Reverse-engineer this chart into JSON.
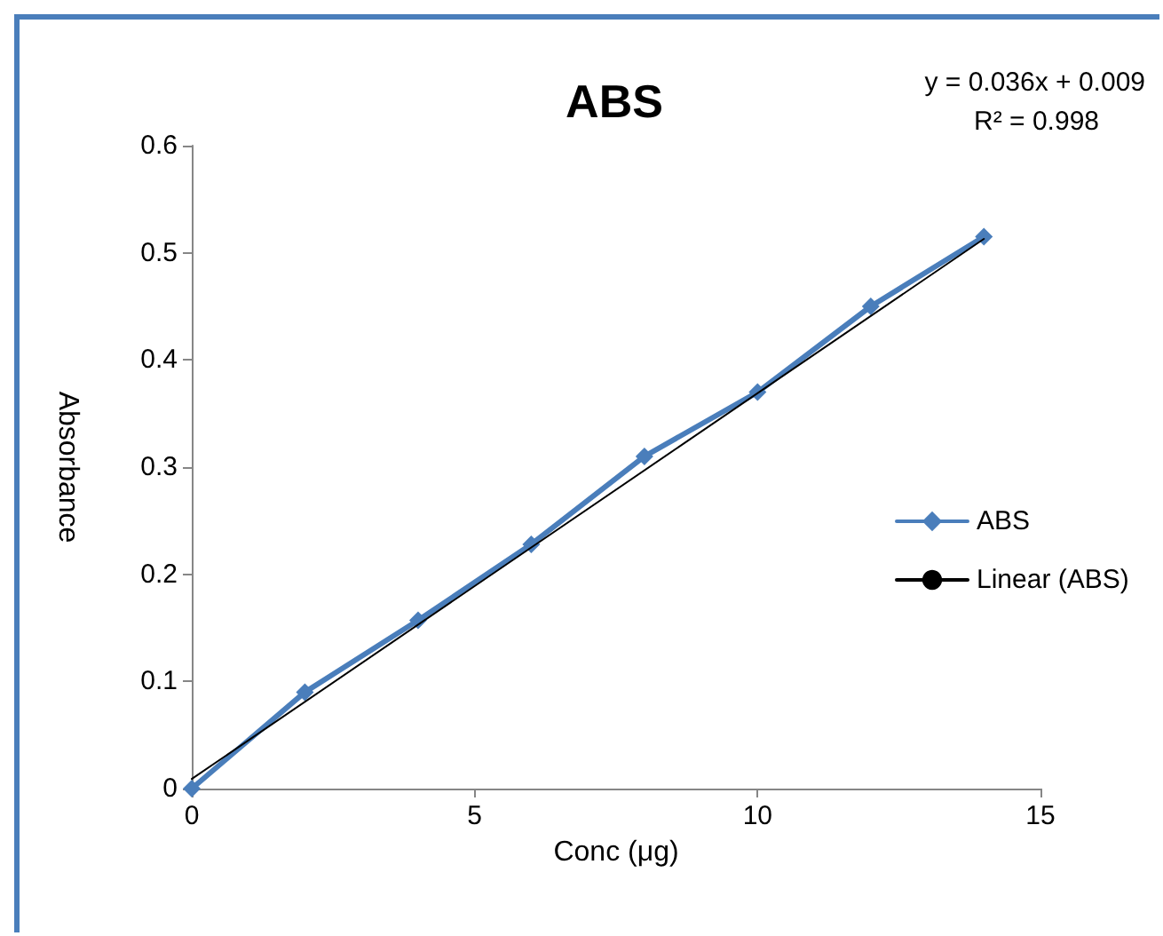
{
  "chart_data": {
    "type": "line",
    "title": "ABS",
    "xlabel": "Conc (μg)",
    "ylabel": "Absorbance",
    "x": [
      0,
      2,
      4,
      6,
      8,
      10,
      12,
      14
    ],
    "series": [
      {
        "name": "ABS",
        "color": "#4a7ebb",
        "values": [
          0,
          0.09,
          0.157,
          0.228,
          0.31,
          0.37,
          0.45,
          0.515
        ],
        "marker": "diamond"
      },
      {
        "name": "Linear (ABS)",
        "type": "line",
        "color": "#000000",
        "x": [
          0,
          14
        ],
        "values": [
          0.009,
          0.513
        ],
        "marker": "none"
      }
    ],
    "xlim": [
      0,
      15
    ],
    "xticks": [
      0,
      5,
      10,
      15
    ],
    "ylim": [
      0,
      0.6
    ],
    "yticks": [
      0,
      0.1,
      0.2,
      0.3,
      0.4,
      0.5,
      0.6
    ],
    "grid": false,
    "legend": "right",
    "annotations": [
      "y = 0.036x + 0.009",
      "R² = 0.998"
    ]
  }
}
